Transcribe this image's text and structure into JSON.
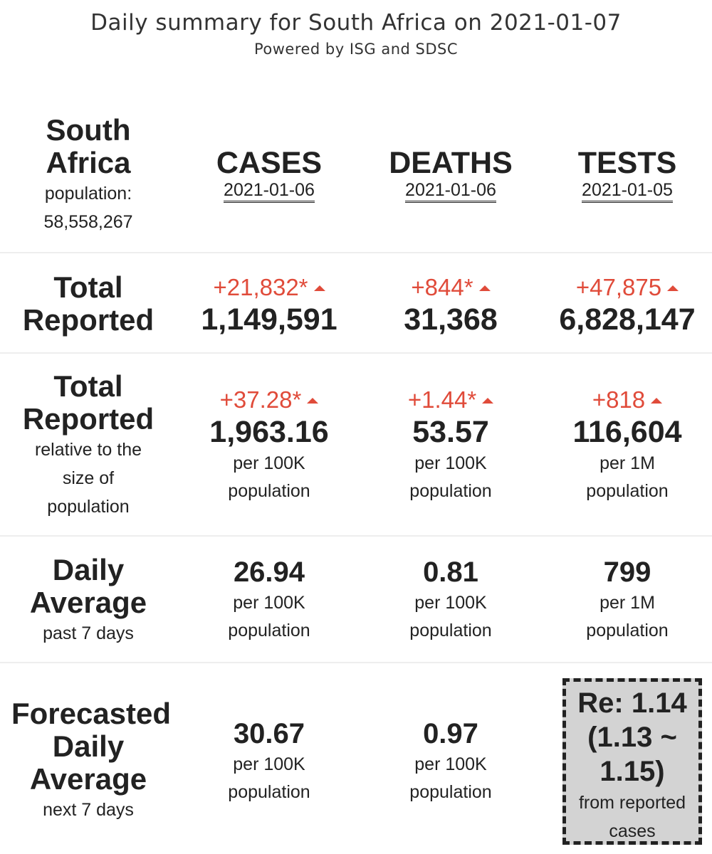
{
  "header": {
    "title": "Daily summary for South Africa on 2021-01-07",
    "subtitle": "Powered by ISG and SDSC"
  },
  "region": {
    "name_line1": "South",
    "name_line2": "Africa",
    "population_label": "population:",
    "population_value": "58,558,267"
  },
  "columns": [
    {
      "title": "CASES",
      "date": "2021-01-06"
    },
    {
      "title": "DEATHS",
      "date": "2021-01-06"
    },
    {
      "title": "TESTS",
      "date": "2021-01-05"
    }
  ],
  "rows": {
    "total": {
      "label_line1": "Total",
      "label_line2": "Reported",
      "cells": [
        {
          "delta": "+21,832*",
          "value": "1,149,591"
        },
        {
          "delta": "+844*",
          "value": "31,368"
        },
        {
          "delta": "+47,875",
          "value": "6,828,147"
        }
      ]
    },
    "relative": {
      "label_line1": "Total",
      "label_line2": "Reported",
      "sub_line1": "relative to the",
      "sub_line2": "size of",
      "sub_line3": "population",
      "cells": [
        {
          "delta": "+37.28*",
          "value": "1,963.16",
          "unit_line1": "per 100K",
          "unit_line2": "population"
        },
        {
          "delta": "+1.44*",
          "value": "53.57",
          "unit_line1": "per 100K",
          "unit_line2": "population"
        },
        {
          "delta": "+818",
          "value": "116,604",
          "unit_line1": "per 1M",
          "unit_line2": "population"
        }
      ]
    },
    "daily": {
      "label_line1": "Daily",
      "label_line2": "Average",
      "sub": "past 7 days",
      "cells": [
        {
          "value": "26.94",
          "unit_line1": "per 100K",
          "unit_line2": "population"
        },
        {
          "value": "0.81",
          "unit_line1": "per 100K",
          "unit_line2": "population"
        },
        {
          "value": "799",
          "unit_line1": "per 1M",
          "unit_line2": "population"
        }
      ]
    },
    "forecast": {
      "label_line1": "Forecasted",
      "label_line2": "Daily",
      "label_line3": "Average",
      "sub": "next 7 days",
      "cells": [
        {
          "value": "30.67",
          "unit_line1": "per 100K",
          "unit_line2": "population"
        },
        {
          "value": "0.97",
          "unit_line1": "per 100K",
          "unit_line2": "population"
        }
      ],
      "re": {
        "line1": "Re: 1.14",
        "line2": "(1.13 ~",
        "line3": "1.15)",
        "sub_line1": "from reported",
        "sub_line2": "cases"
      }
    }
  },
  "colors": {
    "increase": "#e04b3a",
    "text": "#222222",
    "divider": "#eeeeee",
    "re_box_bg": "#d3d3d3"
  }
}
